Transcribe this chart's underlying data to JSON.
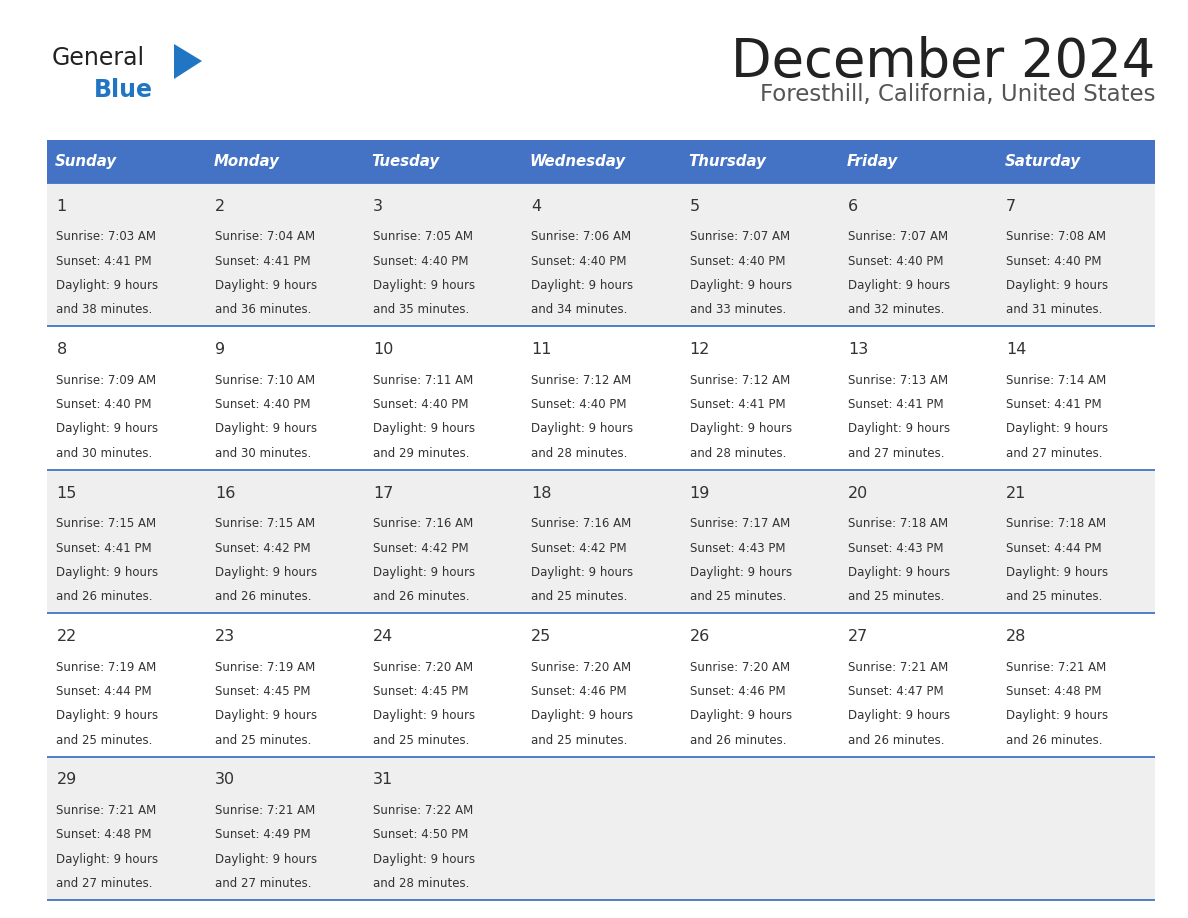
{
  "title": "December 2024",
  "subtitle": "Foresthill, California, United States",
  "header_color": "#4472C4",
  "header_text_color": "#FFFFFF",
  "day_names": [
    "Sunday",
    "Monday",
    "Tuesday",
    "Wednesday",
    "Thursday",
    "Friday",
    "Saturday"
  ],
  "background_color": "#FFFFFF",
  "cell_bg_even": "#EFEFEF",
  "cell_bg_odd": "#FFFFFF",
  "border_color": "#4472C4",
  "title_color": "#222222",
  "subtitle_color": "#555555",
  "day_number_color": "#333333",
  "cell_text_color": "#333333",
  "logo_general_color": "#222222",
  "logo_blue_color": "#2176C4",
  "logo_triangle_color": "#2176C4",
  "weeks": [
    [
      {
        "day": 1,
        "sunrise": "7:03 AM",
        "sunset": "4:41 PM",
        "daylight_h": "9 hours",
        "daylight_m": "and 38 minutes."
      },
      {
        "day": 2,
        "sunrise": "7:04 AM",
        "sunset": "4:41 PM",
        "daylight_h": "9 hours",
        "daylight_m": "and 36 minutes."
      },
      {
        "day": 3,
        "sunrise": "7:05 AM",
        "sunset": "4:40 PM",
        "daylight_h": "9 hours",
        "daylight_m": "and 35 minutes."
      },
      {
        "day": 4,
        "sunrise": "7:06 AM",
        "sunset": "4:40 PM",
        "daylight_h": "9 hours",
        "daylight_m": "and 34 minutes."
      },
      {
        "day": 5,
        "sunrise": "7:07 AM",
        "sunset": "4:40 PM",
        "daylight_h": "9 hours",
        "daylight_m": "and 33 minutes."
      },
      {
        "day": 6,
        "sunrise": "7:07 AM",
        "sunset": "4:40 PM",
        "daylight_h": "9 hours",
        "daylight_m": "and 32 minutes."
      },
      {
        "day": 7,
        "sunrise": "7:08 AM",
        "sunset": "4:40 PM",
        "daylight_h": "9 hours",
        "daylight_m": "and 31 minutes."
      }
    ],
    [
      {
        "day": 8,
        "sunrise": "7:09 AM",
        "sunset": "4:40 PM",
        "daylight_h": "9 hours",
        "daylight_m": "and 30 minutes."
      },
      {
        "day": 9,
        "sunrise": "7:10 AM",
        "sunset": "4:40 PM",
        "daylight_h": "9 hours",
        "daylight_m": "and 30 minutes."
      },
      {
        "day": 10,
        "sunrise": "7:11 AM",
        "sunset": "4:40 PM",
        "daylight_h": "9 hours",
        "daylight_m": "and 29 minutes."
      },
      {
        "day": 11,
        "sunrise": "7:12 AM",
        "sunset": "4:40 PM",
        "daylight_h": "9 hours",
        "daylight_m": "and 28 minutes."
      },
      {
        "day": 12,
        "sunrise": "7:12 AM",
        "sunset": "4:41 PM",
        "daylight_h": "9 hours",
        "daylight_m": "and 28 minutes."
      },
      {
        "day": 13,
        "sunrise": "7:13 AM",
        "sunset": "4:41 PM",
        "daylight_h": "9 hours",
        "daylight_m": "and 27 minutes."
      },
      {
        "day": 14,
        "sunrise": "7:14 AM",
        "sunset": "4:41 PM",
        "daylight_h": "9 hours",
        "daylight_m": "and 27 minutes."
      }
    ],
    [
      {
        "day": 15,
        "sunrise": "7:15 AM",
        "sunset": "4:41 PM",
        "daylight_h": "9 hours",
        "daylight_m": "and 26 minutes."
      },
      {
        "day": 16,
        "sunrise": "7:15 AM",
        "sunset": "4:42 PM",
        "daylight_h": "9 hours",
        "daylight_m": "and 26 minutes."
      },
      {
        "day": 17,
        "sunrise": "7:16 AM",
        "sunset": "4:42 PM",
        "daylight_h": "9 hours",
        "daylight_m": "and 26 minutes."
      },
      {
        "day": 18,
        "sunrise": "7:16 AM",
        "sunset": "4:42 PM",
        "daylight_h": "9 hours",
        "daylight_m": "and 25 minutes."
      },
      {
        "day": 19,
        "sunrise": "7:17 AM",
        "sunset": "4:43 PM",
        "daylight_h": "9 hours",
        "daylight_m": "and 25 minutes."
      },
      {
        "day": 20,
        "sunrise": "7:18 AM",
        "sunset": "4:43 PM",
        "daylight_h": "9 hours",
        "daylight_m": "and 25 minutes."
      },
      {
        "day": 21,
        "sunrise": "7:18 AM",
        "sunset": "4:44 PM",
        "daylight_h": "9 hours",
        "daylight_m": "and 25 minutes."
      }
    ],
    [
      {
        "day": 22,
        "sunrise": "7:19 AM",
        "sunset": "4:44 PM",
        "daylight_h": "9 hours",
        "daylight_m": "and 25 minutes."
      },
      {
        "day": 23,
        "sunrise": "7:19 AM",
        "sunset": "4:45 PM",
        "daylight_h": "9 hours",
        "daylight_m": "and 25 minutes."
      },
      {
        "day": 24,
        "sunrise": "7:20 AM",
        "sunset": "4:45 PM",
        "daylight_h": "9 hours",
        "daylight_m": "and 25 minutes."
      },
      {
        "day": 25,
        "sunrise": "7:20 AM",
        "sunset": "4:46 PM",
        "daylight_h": "9 hours",
        "daylight_m": "and 25 minutes."
      },
      {
        "day": 26,
        "sunrise": "7:20 AM",
        "sunset": "4:46 PM",
        "daylight_h": "9 hours",
        "daylight_m": "and 26 minutes."
      },
      {
        "day": 27,
        "sunrise": "7:21 AM",
        "sunset": "4:47 PM",
        "daylight_h": "9 hours",
        "daylight_m": "and 26 minutes."
      },
      {
        "day": 28,
        "sunrise": "7:21 AM",
        "sunset": "4:48 PM",
        "daylight_h": "9 hours",
        "daylight_m": "and 26 minutes."
      }
    ],
    [
      {
        "day": 29,
        "sunrise": "7:21 AM",
        "sunset": "4:48 PM",
        "daylight_h": "9 hours",
        "daylight_m": "and 27 minutes."
      },
      {
        "day": 30,
        "sunrise": "7:21 AM",
        "sunset": "4:49 PM",
        "daylight_h": "9 hours",
        "daylight_m": "and 27 minutes."
      },
      {
        "day": 31,
        "sunrise": "7:22 AM",
        "sunset": "4:50 PM",
        "daylight_h": "9 hours",
        "daylight_m": "and 28 minutes."
      },
      null,
      null,
      null,
      null
    ]
  ]
}
